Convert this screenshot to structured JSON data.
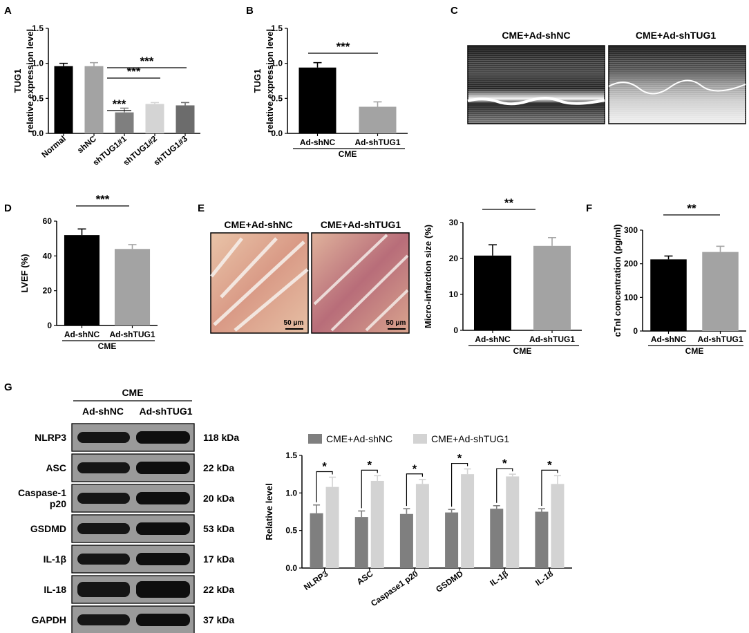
{
  "panel_labels": [
    "A",
    "B",
    "C",
    "D",
    "E",
    "F",
    "G"
  ],
  "colors": {
    "black": "#000000",
    "gray": "#a3a3a3",
    "dark_gray": "#7f7f7f",
    "light_gray": "#d4d4d4",
    "mid_gray": "#6c6c6c",
    "series_shNC": "#7f7f7f",
    "series_shTUG1": "#d3d3d3"
  },
  "echo_titles": [
    "CME+Ad-shNC",
    "CME+Ad-shTUG1"
  ],
  "histo_titles": [
    "CME+Ad-shNC",
    "CME+Ad-shTUG1"
  ],
  "scale_bar": "50 μm",
  "western": {
    "header": "CME",
    "lane_labels": [
      "Ad-shNC",
      "Ad-shTUG1"
    ],
    "proteins": [
      "NLRP3",
      "ASC",
      "Caspase-1\np20",
      "GSDMD",
      "IL-1β",
      "IL-18",
      "GAPDH"
    ],
    "sizes": [
      "118 kDa",
      "22 kDa",
      "20 kDa",
      "53 kDa",
      "17 kDa",
      "22 kDa",
      "37 kDa"
    ]
  },
  "chart_data": [
    {
      "id": "A",
      "type": "bar",
      "ylabel": [
        "TUG1",
        "relative expression level"
      ],
      "categories": [
        "Normal",
        "shNC",
        "shTUG1#1",
        "shTUG1#2",
        "shTUG1#3"
      ],
      "values": [
        0.96,
        0.96,
        0.3,
        0.42,
        0.4
      ],
      "errors": [
        0.04,
        0.05,
        0.06,
        0.02,
        0.04
      ],
      "colors": [
        "#000000",
        "#a3a3a3",
        "#7f7f7f",
        "#d4d4d4",
        "#6c6c6c"
      ],
      "ylim": [
        0,
        1.5
      ],
      "yticks": [
        "0.0",
        "0.5",
        "1.0",
        "1.5"
      ],
      "significance": [
        "***",
        "***",
        "***"
      ],
      "group_label": ""
    },
    {
      "id": "B",
      "type": "bar",
      "ylabel": [
        "TUG1",
        "relative expression level"
      ],
      "categories": [
        "Ad-shNC",
        "Ad-shTUG1"
      ],
      "values": [
        0.94,
        0.38
      ],
      "errors": [
        0.07,
        0.07
      ],
      "colors": [
        "#000000",
        "#a3a3a3"
      ],
      "ylim": [
        0,
        1.5
      ],
      "yticks": [
        "0.0",
        "0.5",
        "1.0",
        "1.5"
      ],
      "significance": [
        "***"
      ],
      "group_label": "CME"
    },
    {
      "id": "D",
      "type": "bar",
      "ylabel": [
        "LVEF (%)"
      ],
      "categories": [
        "Ad-shNC",
        "Ad-shTUG1"
      ],
      "values": [
        52,
        44
      ],
      "errors": [
        3.5,
        2.5
      ],
      "colors": [
        "#000000",
        "#a3a3a3"
      ],
      "ylim": [
        0,
        60
      ],
      "yticks": [
        "0",
        "20",
        "40",
        "60"
      ],
      "significance": [
        "***"
      ],
      "group_label": "CME"
    },
    {
      "id": "E",
      "type": "bar",
      "ylabel": [
        "Micro-infarction size (%)"
      ],
      "categories": [
        "Ad-shNC",
        "Ad-shTUG1"
      ],
      "values": [
        20.8,
        23.5
      ],
      "errors": [
        3.0,
        2.3
      ],
      "colors": [
        "#000000",
        "#a3a3a3"
      ],
      "ylim": [
        0,
        30
      ],
      "yticks": [
        "0",
        "10",
        "20",
        "30"
      ],
      "significance": [
        "**"
      ],
      "group_label": "CME"
    },
    {
      "id": "F",
      "type": "bar",
      "ylabel": [
        "cTnI concentration (pg/ml)"
      ],
      "categories": [
        "Ad-shNC",
        "Ad-shTUG1"
      ],
      "values": [
        213,
        235
      ],
      "errors": [
        10,
        17
      ],
      "colors": [
        "#000000",
        "#a3a3a3"
      ],
      "ylim": [
        0,
        300
      ],
      "yticks": [
        "0",
        "100",
        "200",
        "300"
      ],
      "significance": [
        "**"
      ],
      "group_label": "CME"
    },
    {
      "id": "G",
      "type": "bar",
      "ylabel": [
        "Relative level"
      ],
      "categories": [
        "NLRP3",
        "ASC",
        "Caspase1 p20",
        "GSDMD",
        "IL-1β",
        "IL-18"
      ],
      "series": [
        {
          "name": "CME+Ad-shNC",
          "values": [
            0.73,
            0.68,
            0.72,
            0.74,
            0.79,
            0.75
          ],
          "errors": [
            0.11,
            0.08,
            0.07,
            0.04,
            0.04,
            0.04
          ]
        },
        {
          "name": "CME+Ad-shTUG1",
          "values": [
            1.08,
            1.16,
            1.12,
            1.25,
            1.22,
            1.12
          ],
          "errors": [
            0.13,
            0.07,
            0.06,
            0.07,
            0.03,
            0.11
          ]
        }
      ],
      "ylim": [
        0,
        1.5
      ],
      "yticks": [
        "0.0",
        "0.5",
        "1.0",
        "1.5"
      ],
      "significance": [
        "*",
        "*",
        "*",
        "*",
        "*",
        "*"
      ],
      "legend_position": "top"
    }
  ]
}
